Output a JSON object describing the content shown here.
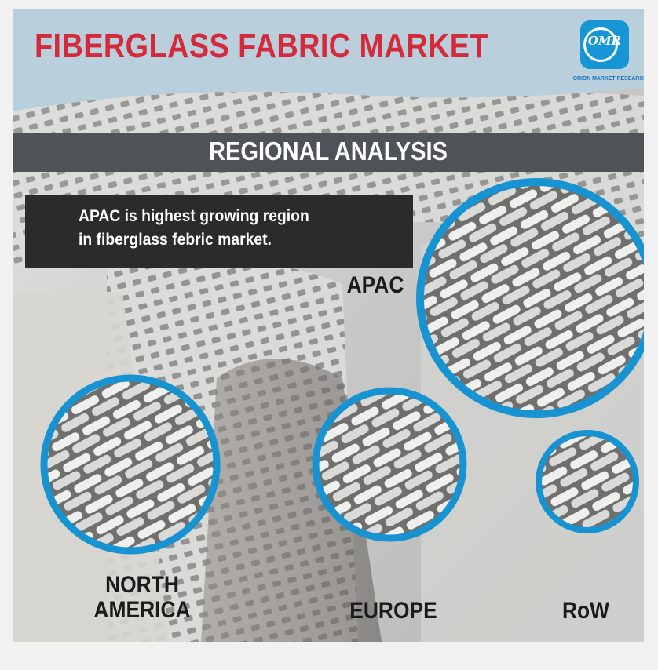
{
  "header": {
    "title": "FIBERGLASS FABRIC MARKET"
  },
  "logo": {
    "mark": "OMR",
    "caption": "ORION MARKET RESEARCH"
  },
  "section": {
    "title": "REGIONAL ANALYSIS"
  },
  "callout": {
    "line1": "APAC is highest growing region",
    "line2": "in fiberglass febric market."
  },
  "regions": [
    {
      "name": "APAC"
    },
    {
      "name": "NORTH",
      "name2": "AMERICA"
    },
    {
      "name": "EUROPE"
    },
    {
      "name": "RoW"
    }
  ],
  "colors": {
    "title": "#d42a3b",
    "ring": "#1793d1",
    "band": "#4d5357",
    "callout": "#2b2b2b"
  }
}
